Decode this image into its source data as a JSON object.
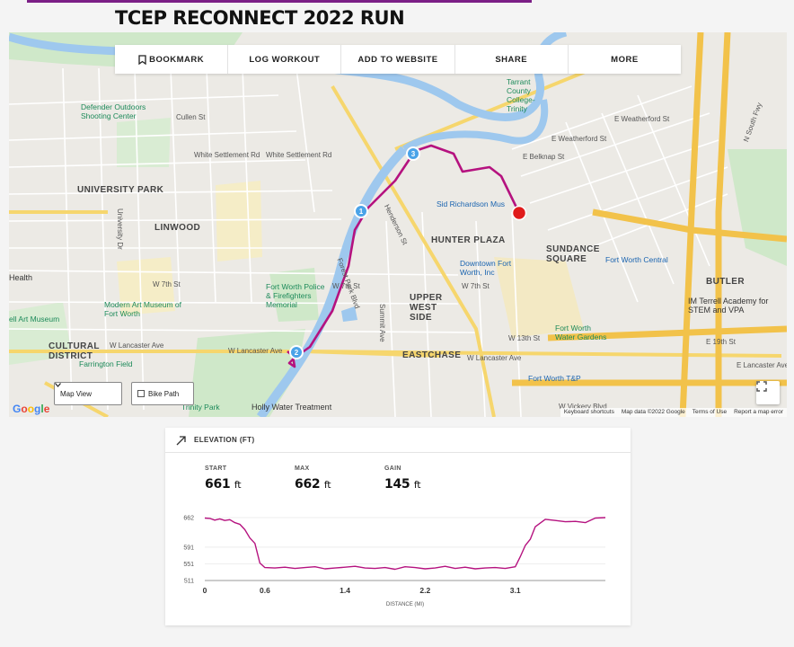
{
  "page": {
    "title": "TCEP RECONNECT 2022 RUN"
  },
  "toolbar": {
    "bookmark": "BOOKMARK",
    "log_workout": "LOG WORKOUT",
    "add_to_website": "ADD TO WEBSITE",
    "share": "SHARE",
    "more": "MORE"
  },
  "map": {
    "labels": {
      "university_park": "UNIVERSITY PARK",
      "linwood": "LINWOOD",
      "hunter_plaza": "HUNTER PLAZA",
      "sundance_square": "SUNDANCE SQUARE",
      "upper_west_side": "UPPER WEST SIDE",
      "cultural_district": "CULTURAL DISTRICT",
      "eastchase": "EASTCHASE",
      "butler": "BUTLER",
      "defender": "Defender Outdoors Shooting Center",
      "tarrant": "Tarrant County College- Trinity",
      "tarrant_short": "Tarrant County College- Trinity",
      "sid_richardson": "Sid Richardson Mus",
      "downtown_fw": "Downtown Fort Worth, Inc",
      "fort_worth_central": "Fort Worth Central",
      "modern_art": "Modern Art Museum of Fort Worth",
      "kimbell": "ell Art Museum",
      "fw_police": "Fort Worth Police & Firefighters Memorial",
      "farrington": "Farrington Field",
      "trinity_park": "Trinity Park",
      "holly_water": "Holly Water Treatment",
      "water_gardens": "Fort Worth Water Gardens",
      "fw_tp": "Fort Worth T&P",
      "im_terrell": "IM Terrell Academy for STEM and VPA",
      "health": "Health",
      "white_settlement": "White Settlement Rd",
      "henderson": "Henderson St",
      "forest_park": "Forest Park Blvd",
      "w_lancaster": "W Lancaster Ave",
      "w_7th": "W 7th St",
      "e_belknap": "E Belknap St",
      "e_weatherford": "E Weatherford St",
      "summit": "Summit Ave",
      "university_dr": "University Dr",
      "cullen": "Cullen St",
      "w_vickery": "W Vickery Blvd",
      "n_south_fwy": "N South Fwy",
      "e_lancaster": "E Lancaster Ave",
      "e_19th": "E 19th St",
      "w_13th": "W 13th St"
    },
    "markers": [
      "1",
      "2",
      "3"
    ],
    "controls": {
      "map_view": "Map View",
      "bike_path": "Bike Path"
    },
    "attribution": {
      "shortcuts": "Keyboard shortcuts",
      "data": "Map data ©2022 Google",
      "terms": "Terms of Use",
      "report": "Report a map error"
    },
    "route_color": "#b5127f"
  },
  "elevation": {
    "title": "ELEVATION (FT)",
    "stats": [
      {
        "label": "START",
        "value": "661",
        "unit": "ft"
      },
      {
        "label": "MAX",
        "value": "662",
        "unit": "ft"
      },
      {
        "label": "GAIN",
        "value": "145",
        "unit": "ft"
      }
    ],
    "line_color": "#b5127f"
  },
  "chart_data": {
    "type": "line",
    "title": "ELEVATION (FT)",
    "xlabel": "DISTANCE (MI)",
    "ylabel": "",
    "xlim": [
      0,
      4.0
    ],
    "ylim": [
      511,
      662
    ],
    "yticks": [
      662,
      591,
      551,
      511
    ],
    "xticks": [
      0,
      0.6,
      1.4,
      2.2,
      3.1
    ],
    "series": [
      {
        "x": [
          0,
          0.05,
          0.1,
          0.15,
          0.2,
          0.25,
          0.3,
          0.35,
          0.4,
          0.45,
          0.5,
          0.55,
          0.6,
          0.7,
          0.8,
          0.9,
          1.0,
          1.1,
          1.2,
          1.3,
          1.4,
          1.5,
          1.6,
          1.7,
          1.8,
          1.9,
          2.0,
          2.1,
          2.2,
          2.3,
          2.4,
          2.5,
          2.6,
          2.7,
          2.8,
          2.9,
          3.0,
          3.1,
          3.15,
          3.2,
          3.25,
          3.3,
          3.4,
          3.5,
          3.6,
          3.7,
          3.8,
          3.9,
          4.0
        ],
        "y": [
          661,
          660,
          656,
          659,
          655,
          657,
          650,
          646,
          633,
          613,
          600,
          553,
          542,
          541,
          543,
          540,
          542,
          544,
          539,
          541,
          543,
          545,
          541,
          540,
          542,
          538,
          544,
          542,
          539,
          541,
          545,
          540,
          543,
          539,
          541,
          542,
          540,
          544,
          568,
          595,
          610,
          640,
          658,
          655,
          652,
          653,
          650,
          661,
          662
        ]
      }
    ]
  }
}
